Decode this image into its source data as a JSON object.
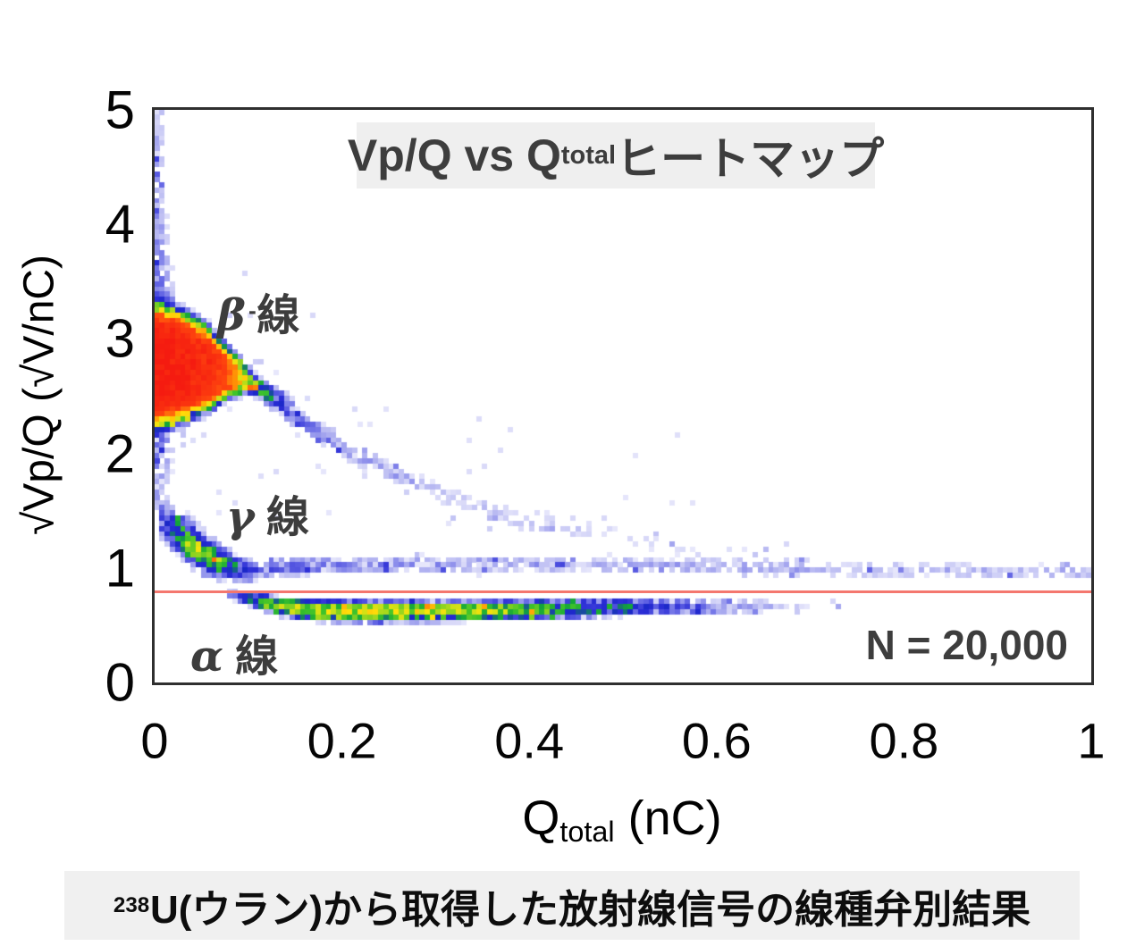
{
  "figure": {
    "title": {
      "prefix": "Vp/Q vs Q",
      "sub": "total",
      "suffix": " ヒートマップ"
    },
    "n_label": "N = 20,000",
    "caption": {
      "sup": "238",
      "text": "U(ウラン)から取得した放射線信号の線種弁別結果"
    },
    "annotations": [
      {
        "name": "beta",
        "greek": "β",
        "sup": "-",
        "suffix": "線"
      },
      {
        "name": "gamma",
        "greek": "γ",
        "sup": "",
        "suffix": " 線"
      },
      {
        "name": "alpha",
        "greek": "α",
        "sup": "",
        "suffix": " 線"
      }
    ]
  },
  "chart_data": {
    "type": "heatmap",
    "title": "Vp/Q vs Qtotal ヒートマップ",
    "xlabel": {
      "prefix": "Q",
      "sub": "total",
      "suffix": " (nC)"
    },
    "ylabel": "√Vp/Q (√V/nC)",
    "xlim": [
      0,
      1
    ],
    "ylim": [
      0,
      5
    ],
    "x_ticks": [
      0,
      0.2,
      0.4,
      0.6,
      0.8,
      1
    ],
    "x_tick_labels": [
      "0",
      "0.2",
      "0.4",
      "0.6",
      "0.8",
      "1"
    ],
    "y_ticks": [
      0,
      1,
      2,
      3,
      4,
      5
    ],
    "y_tick_labels": [
      "0",
      "1",
      "2",
      "3",
      "4",
      "5"
    ],
    "grid": false,
    "legend": "none",
    "n_events": 20000,
    "threshold_line": {
      "y": 0.8,
      "color": "#f4776e"
    },
    "bins": {
      "nx": 180,
      "ny": 110
    },
    "vmin": 0.5,
    "vmax": 90,
    "noise": {
      "seed": 1337,
      "base": 0.3,
      "span": 1.4,
      "boost_p": 0.05,
      "boost": 2.5,
      "stabilize": 30
    },
    "colormap": [
      [
        0.0,
        "#e7e7fb"
      ],
      [
        0.14,
        "#b9baf2"
      ],
      [
        0.28,
        "#6b6de6"
      ],
      [
        0.4,
        "#2b2dd6"
      ],
      [
        0.47,
        "#1b28c8"
      ],
      [
        0.53,
        "#12a53a"
      ],
      [
        0.6,
        "#3fc32a"
      ],
      [
        0.67,
        "#c8e018"
      ],
      [
        0.72,
        "#ffe20a"
      ],
      [
        0.78,
        "#ff9d05"
      ],
      [
        0.84,
        "#ff4a0e"
      ],
      [
        1.0,
        "#f51b10"
      ]
    ],
    "clusters": [
      {
        "name": "beta-core",
        "type": "ridge",
        "axis": "x",
        "p": 5,
        "pts": [
          [
            -0.005,
            2.76,
            0.4,
            88
          ],
          [
            0.025,
            2.76,
            0.36,
            82
          ],
          [
            0.055,
            2.74,
            0.27,
            66
          ],
          [
            0.08,
            2.7,
            0.16,
            40
          ],
          [
            0.1,
            2.64,
            0.09,
            10
          ],
          [
            0.125,
            2.52,
            0.06,
            2.2
          ],
          [
            0.15,
            2.45,
            0.05,
            0.6
          ]
        ]
      },
      {
        "name": "beta-axis-column",
        "type": "ridge",
        "axis": "y",
        "p": 2,
        "pts": [
          [
            1.5,
            0.004,
            0.009,
            0.7
          ],
          [
            2.0,
            0.004,
            0.01,
            1.5
          ],
          [
            3.3,
            0.004,
            0.01,
            2.0
          ],
          [
            3.8,
            0.0035,
            0.008,
            1.2
          ],
          [
            4.4,
            0.003,
            0.0065,
            0.9
          ],
          [
            5.0,
            0.003,
            0.006,
            1.0
          ]
        ]
      },
      {
        "name": "beta-trail",
        "type": "ridge",
        "axis": "x",
        "p": 2,
        "pts": [
          [
            0.095,
            2.66,
            0.045,
            5
          ],
          [
            0.15,
            2.32,
            0.05,
            2.0
          ],
          [
            0.22,
            1.95,
            0.05,
            0.9
          ],
          [
            0.32,
            1.6,
            0.055,
            0.55
          ],
          [
            0.44,
            1.32,
            0.06,
            0.4
          ],
          [
            0.58,
            1.16,
            0.07,
            0.28
          ],
          [
            0.7,
            1.1,
            0.07,
            0.2
          ]
        ]
      },
      {
        "name": "gamma-core",
        "type": "ridge",
        "axis": "x",
        "p": 2,
        "pts": [
          [
            0.008,
            1.4,
            0.09,
            2.5
          ],
          [
            0.025,
            1.3,
            0.09,
            8
          ],
          [
            0.04,
            1.2,
            0.085,
            15
          ],
          [
            0.055,
            1.11,
            0.08,
            16
          ],
          [
            0.07,
            1.05,
            0.07,
            11
          ],
          [
            0.085,
            1.0,
            0.06,
            6
          ],
          [
            0.105,
            0.97,
            0.05,
            2.6
          ],
          [
            0.13,
            0.96,
            0.05,
            1.4
          ]
        ]
      },
      {
        "name": "gamma-tail",
        "type": "ridge",
        "axis": "x",
        "p": 2,
        "pts": [
          [
            0.12,
            1.0,
            0.055,
            2.2
          ],
          [
            0.22,
            1.02,
            0.05,
            1.4
          ],
          [
            0.35,
            1.03,
            0.05,
            1.05
          ],
          [
            0.5,
            1.02,
            0.05,
            0.95
          ],
          [
            0.68,
            0.99,
            0.045,
            0.9
          ],
          [
            0.86,
            0.97,
            0.045,
            0.85
          ],
          [
            1.01,
            0.96,
            0.04,
            0.9
          ]
        ]
      },
      {
        "name": "alpha-band",
        "type": "ridge",
        "axis": "x",
        "p": 3,
        "pts": [
          [
            0.08,
            0.77,
            0.03,
            1.8
          ],
          [
            0.105,
            0.715,
            0.042,
            5
          ],
          [
            0.135,
            0.66,
            0.05,
            12
          ],
          [
            0.17,
            0.625,
            0.055,
            17
          ],
          [
            0.24,
            0.615,
            0.055,
            18
          ],
          [
            0.31,
            0.62,
            0.052,
            16
          ],
          [
            0.39,
            0.63,
            0.05,
            12
          ],
          [
            0.46,
            0.645,
            0.05,
            7.5
          ],
          [
            0.54,
            0.655,
            0.045,
            3.6
          ],
          [
            0.61,
            0.66,
            0.042,
            1.5
          ],
          [
            0.68,
            0.66,
            0.04,
            0.55
          ],
          [
            0.74,
            0.66,
            0.04,
            0.25
          ]
        ]
      },
      {
        "name": "scatter-mid",
        "type": "box",
        "x0": 0.03,
        "x1": 0.58,
        "y0": 1.3,
        "y1": 2.4,
        "a": 0.15
      },
      {
        "name": "scatter-right",
        "type": "box",
        "x0": 0.25,
        "x1": 0.97,
        "y0": 1.06,
        "y1": 1.5,
        "a": 0.08
      },
      {
        "name": "scatter-blob-halo",
        "type": "box",
        "x0": 0.02,
        "x1": 0.2,
        "y0": 2.4,
        "y1": 3.6,
        "a": 0.2
      }
    ]
  }
}
